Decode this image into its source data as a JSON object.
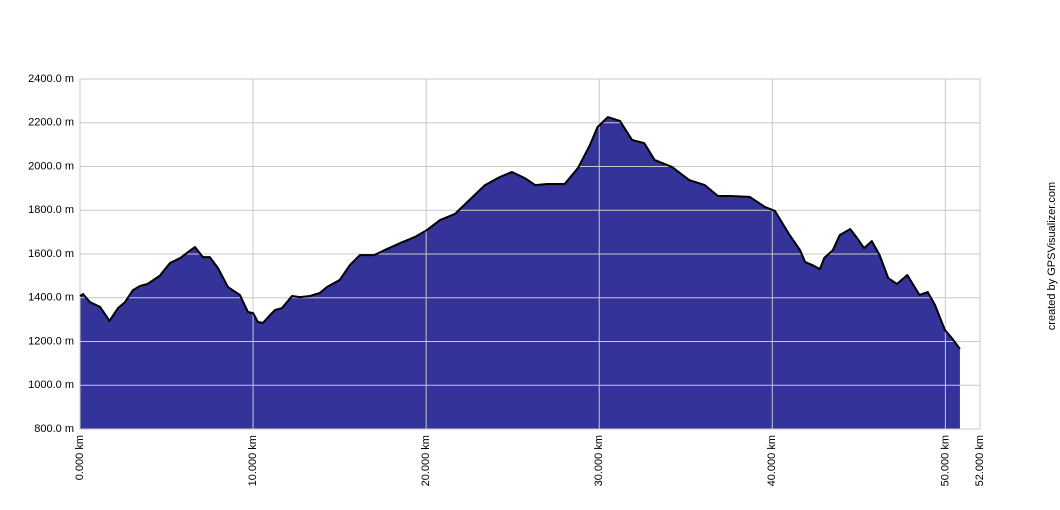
{
  "chart_data": {
    "type": "area",
    "x": [
      0,
      0.17,
      0.58,
      1.16,
      1.6,
      1.7,
      2.2,
      2.6,
      3.06,
      3.47,
      3.9,
      4.6,
      5.2,
      5.8,
      6.24,
      6.64,
      7.1,
      7.5,
      7.97,
      8.55,
      9.24,
      9.7,
      10.0,
      10.28,
      10.57,
      10.98,
      11.27,
      11.67,
      12.25,
      12.7,
      13.29,
      13.86,
      14.27,
      15.0,
      15.6,
      16.17,
      17.0,
      17.6,
      18.5,
      19.35,
      20.05,
      20.8,
      21.66,
      22.5,
      23.4,
      24.26,
      24.96,
      25.7,
      26.3,
      27.0,
      28.0,
      28.77,
      29.46,
      29.9,
      30.5,
      31.2,
      31.9,
      32.6,
      33.2,
      34.2,
      35.2,
      36.1,
      36.86,
      37.55,
      38.7,
      39.57,
      40.15,
      41.0,
      41.6,
      41.9,
      42.3,
      42.75,
      43.0,
      43.5,
      43.9,
      44.5,
      44.9,
      45.3,
      45.75,
      46.2,
      46.7,
      47.2,
      47.8,
      48.5,
      48.98,
      49.4,
      49.97,
      50.37,
      50.84
    ],
    "values": [
      1408,
      1417,
      1380,
      1358,
      1307,
      1294,
      1353,
      1380,
      1435,
      1454,
      1463,
      1500,
      1559,
      1582,
      1609,
      1632,
      1586,
      1586,
      1536,
      1449,
      1413,
      1335,
      1330,
      1289,
      1285,
      1321,
      1344,
      1353,
      1408,
      1403,
      1408,
      1422,
      1449,
      1481,
      1550,
      1595,
      1595,
      1618,
      1650,
      1678,
      1710,
      1755,
      1783,
      1847,
      1915,
      1952,
      1975,
      1947,
      1915,
      1920,
      1920,
      1993,
      2098,
      2180,
      2226,
      2208,
      2121,
      2107,
      2030,
      1998,
      1938,
      1915,
      1865,
      1865,
      1861,
      1815,
      1797,
      1687,
      1618,
      1563,
      1550,
      1531,
      1582,
      1618,
      1687,
      1714,
      1673,
      1627,
      1659,
      1595,
      1490,
      1463,
      1504,
      1413,
      1426,
      1367,
      1253,
      1216,
      1166
    ],
    "color": "#333399",
    "line_color": "#000000",
    "xlim": [
      0,
      52
    ],
    "ylim": [
      800,
      2400
    ],
    "xticks": [
      {
        "value": 0,
        "label": "0.000 km"
      },
      {
        "value": 10,
        "label": "10.000 km"
      },
      {
        "value": 20,
        "label": "20.000 km"
      },
      {
        "value": 30,
        "label": "30.000 km"
      },
      {
        "value": 40,
        "label": "40.000 km"
      },
      {
        "value": 50,
        "label": "50.000 km"
      },
      {
        "value": 52,
        "label": "52.000 km"
      }
    ],
    "yticks": [
      {
        "value": 800,
        "label": "800.0 m"
      },
      {
        "value": 1000,
        "label": "1000.0 m"
      },
      {
        "value": 1200,
        "label": "1200.0 m"
      },
      {
        "value": 1400,
        "label": "1400.0 m"
      },
      {
        "value": 1600,
        "label": "1600.0 m"
      },
      {
        "value": 1800,
        "label": "1800.0 m"
      },
      {
        "value": 2000,
        "label": "2000.0 m"
      },
      {
        "value": 2200,
        "label": "2200.0 m"
      },
      {
        "value": 2400,
        "label": "2400.0 m"
      }
    ],
    "grid": true,
    "credit": "created by GPSVisualizer.com"
  }
}
